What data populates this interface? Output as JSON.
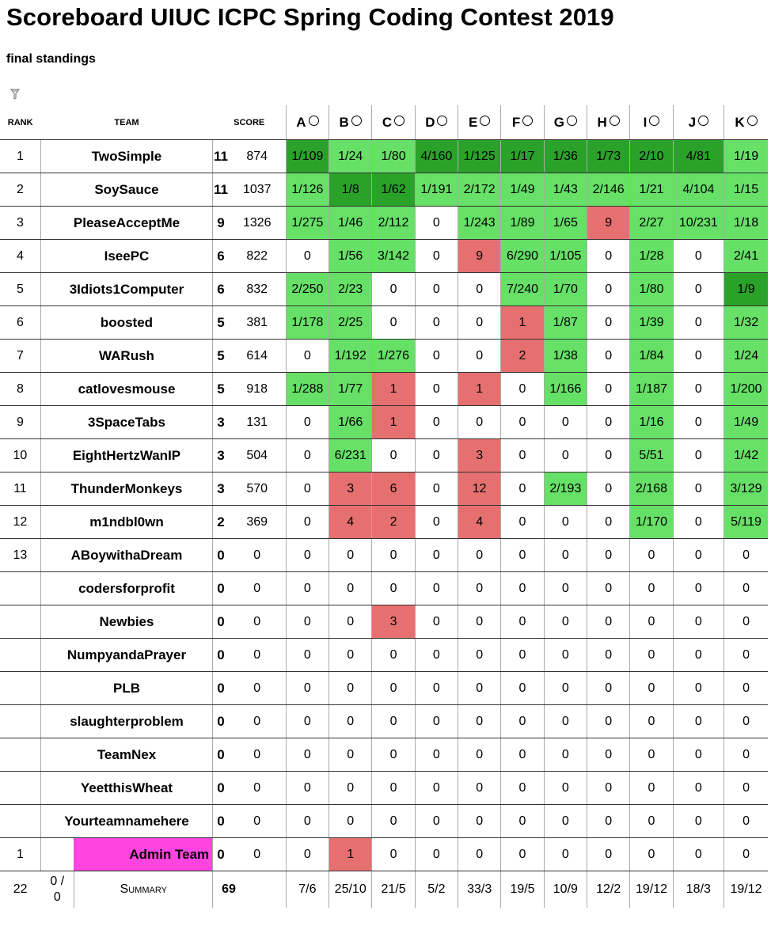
{
  "header": {
    "title": "Scoreboard UIUC ICPC Spring Coding Contest 2019",
    "subtitle": "final standings"
  },
  "filter_icon": "filter-icon",
  "columns": {
    "rank": "RANK",
    "team": "TEAM",
    "score": "SCORE",
    "problems": [
      "A",
      "B",
      "C",
      "D",
      "E",
      "F",
      "G",
      "H",
      "I",
      "J",
      "K"
    ]
  },
  "rows": [
    {
      "rank": "1",
      "team": "TwoSimple",
      "solved": "11",
      "penalty": "874",
      "cells": [
        [
          "1/109",
          "dg"
        ],
        [
          "1/24",
          "lg"
        ],
        [
          "1/80",
          "lg"
        ],
        [
          "4/160",
          "dg"
        ],
        [
          "1/125",
          "dg"
        ],
        [
          "1/17",
          "dg"
        ],
        [
          "1/36",
          "dg"
        ],
        [
          "1/73",
          "dg"
        ],
        [
          "2/10",
          "dg"
        ],
        [
          "4/81",
          "dg"
        ],
        [
          "1/19",
          "lg"
        ]
      ]
    },
    {
      "rank": "2",
      "team": "SoySauce",
      "solved": "11",
      "penalty": "1037",
      "cells": [
        [
          "1/126",
          "lg"
        ],
        [
          "1/8",
          "dg"
        ],
        [
          "1/62",
          "dg"
        ],
        [
          "1/191",
          "lg"
        ],
        [
          "2/172",
          "lg"
        ],
        [
          "1/49",
          "lg"
        ],
        [
          "1/43",
          "lg"
        ],
        [
          "2/146",
          "lg"
        ],
        [
          "1/21",
          "lg"
        ],
        [
          "4/104",
          "lg"
        ],
        [
          "1/15",
          "lg"
        ]
      ]
    },
    {
      "rank": "3",
      "team": "PleaseAcceptMe",
      "solved": "9",
      "penalty": "1326",
      "cells": [
        [
          "1/275",
          "lg"
        ],
        [
          "1/46",
          "lg"
        ],
        [
          "2/112",
          "lg"
        ],
        [
          "0",
          ""
        ],
        [
          "1/243",
          "lg"
        ],
        [
          "1/89",
          "lg"
        ],
        [
          "1/65",
          "lg"
        ],
        [
          "9",
          "rd"
        ],
        [
          "2/27",
          "lg"
        ],
        [
          "10/231",
          "lg"
        ],
        [
          "1/18",
          "lg"
        ]
      ]
    },
    {
      "rank": "4",
      "team": "IseePC",
      "solved": "6",
      "penalty": "822",
      "cells": [
        [
          "0",
          ""
        ],
        [
          "1/56",
          "lg"
        ],
        [
          "3/142",
          "lg"
        ],
        [
          "0",
          ""
        ],
        [
          "9",
          "rd"
        ],
        [
          "6/290",
          "lg"
        ],
        [
          "1/105",
          "lg"
        ],
        [
          "0",
          ""
        ],
        [
          "1/28",
          "lg"
        ],
        [
          "0",
          ""
        ],
        [
          "2/41",
          "lg"
        ]
      ]
    },
    {
      "rank": "5",
      "team": "3Idiots1Computer",
      "solved": "6",
      "penalty": "832",
      "cells": [
        [
          "2/250",
          "lg"
        ],
        [
          "2/23",
          "lg"
        ],
        [
          "0",
          ""
        ],
        [
          "0",
          ""
        ],
        [
          "0",
          ""
        ],
        [
          "7/240",
          "lg"
        ],
        [
          "1/70",
          "lg"
        ],
        [
          "0",
          ""
        ],
        [
          "1/80",
          "lg"
        ],
        [
          "0",
          ""
        ],
        [
          "1/9",
          "dg"
        ]
      ]
    },
    {
      "rank": "6",
      "team": "boosted",
      "solved": "5",
      "penalty": "381",
      "cells": [
        [
          "1/178",
          "lg"
        ],
        [
          "2/25",
          "lg"
        ],
        [
          "0",
          ""
        ],
        [
          "0",
          ""
        ],
        [
          "0",
          ""
        ],
        [
          "1",
          "rd"
        ],
        [
          "1/87",
          "lg"
        ],
        [
          "0",
          ""
        ],
        [
          "1/39",
          "lg"
        ],
        [
          "0",
          ""
        ],
        [
          "1/32",
          "lg"
        ]
      ]
    },
    {
      "rank": "7",
      "team": "WARush",
      "solved": "5",
      "penalty": "614",
      "cells": [
        [
          "0",
          ""
        ],
        [
          "1/192",
          "lg"
        ],
        [
          "1/276",
          "lg"
        ],
        [
          "0",
          ""
        ],
        [
          "0",
          ""
        ],
        [
          "2",
          "rd"
        ],
        [
          "1/38",
          "lg"
        ],
        [
          "0",
          ""
        ],
        [
          "1/84",
          "lg"
        ],
        [
          "0",
          ""
        ],
        [
          "1/24",
          "lg"
        ]
      ]
    },
    {
      "rank": "8",
      "team": "catlovesmouse",
      "solved": "5",
      "penalty": "918",
      "cells": [
        [
          "1/288",
          "lg"
        ],
        [
          "1/77",
          "lg"
        ],
        [
          "1",
          "rd"
        ],
        [
          "0",
          ""
        ],
        [
          "1",
          "rd"
        ],
        [
          "0",
          ""
        ],
        [
          "1/166",
          "lg"
        ],
        [
          "0",
          ""
        ],
        [
          "1/187",
          "lg"
        ],
        [
          "0",
          ""
        ],
        [
          "1/200",
          "lg"
        ]
      ]
    },
    {
      "rank": "9",
      "team": "3SpaceTabs",
      "solved": "3",
      "penalty": "131",
      "cells": [
        [
          "0",
          ""
        ],
        [
          "1/66",
          "lg"
        ],
        [
          "1",
          "rd"
        ],
        [
          "0",
          ""
        ],
        [
          "0",
          ""
        ],
        [
          "0",
          ""
        ],
        [
          "0",
          ""
        ],
        [
          "0",
          ""
        ],
        [
          "1/16",
          "lg"
        ],
        [
          "0",
          ""
        ],
        [
          "1/49",
          "lg"
        ]
      ]
    },
    {
      "rank": "10",
      "team": "EightHertzWanIP",
      "solved": "3",
      "penalty": "504",
      "cells": [
        [
          "0",
          ""
        ],
        [
          "6/231",
          "lg"
        ],
        [
          "0",
          ""
        ],
        [
          "0",
          ""
        ],
        [
          "3",
          "rd"
        ],
        [
          "0",
          ""
        ],
        [
          "0",
          ""
        ],
        [
          "0",
          ""
        ],
        [
          "5/51",
          "lg"
        ],
        [
          "0",
          ""
        ],
        [
          "1/42",
          "lg"
        ]
      ]
    },
    {
      "rank": "11",
      "team": "ThunderMonkeys",
      "solved": "3",
      "penalty": "570",
      "cells": [
        [
          "0",
          ""
        ],
        [
          "3",
          "rd"
        ],
        [
          "6",
          "rd"
        ],
        [
          "0",
          ""
        ],
        [
          "12",
          "rd"
        ],
        [
          "0",
          ""
        ],
        [
          "2/193",
          "lg"
        ],
        [
          "0",
          ""
        ],
        [
          "2/168",
          "lg"
        ],
        [
          "0",
          ""
        ],
        [
          "3/129",
          "lg"
        ]
      ]
    },
    {
      "rank": "12",
      "team": "m1ndbl0wn",
      "solved": "2",
      "penalty": "369",
      "cells": [
        [
          "0",
          ""
        ],
        [
          "4",
          "rd"
        ],
        [
          "2",
          "rd"
        ],
        [
          "0",
          ""
        ],
        [
          "4",
          "rd"
        ],
        [
          "0",
          ""
        ],
        [
          "0",
          ""
        ],
        [
          "0",
          ""
        ],
        [
          "1/170",
          "lg"
        ],
        [
          "0",
          ""
        ],
        [
          "5/119",
          "lg"
        ]
      ]
    },
    {
      "rank": "13",
      "team": "ABoywithaDream",
      "solved": "0",
      "penalty": "0",
      "cells": [
        [
          "0",
          ""
        ],
        [
          "0",
          ""
        ],
        [
          "0",
          ""
        ],
        [
          "0",
          ""
        ],
        [
          "0",
          ""
        ],
        [
          "0",
          ""
        ],
        [
          "0",
          ""
        ],
        [
          "0",
          ""
        ],
        [
          "0",
          ""
        ],
        [
          "0",
          ""
        ],
        [
          "0",
          ""
        ]
      ]
    },
    {
      "rank": "",
      "team": "codersforprofit",
      "solved": "0",
      "penalty": "0",
      "cells": [
        [
          "0",
          ""
        ],
        [
          "0",
          ""
        ],
        [
          "0",
          ""
        ],
        [
          "0",
          ""
        ],
        [
          "0",
          ""
        ],
        [
          "0",
          ""
        ],
        [
          "0",
          ""
        ],
        [
          "0",
          ""
        ],
        [
          "0",
          ""
        ],
        [
          "0",
          ""
        ],
        [
          "0",
          ""
        ]
      ]
    },
    {
      "rank": "",
      "team": "Newbies",
      "solved": "0",
      "penalty": "0",
      "cells": [
        [
          "0",
          ""
        ],
        [
          "0",
          ""
        ],
        [
          "3",
          "rd"
        ],
        [
          "0",
          ""
        ],
        [
          "0",
          ""
        ],
        [
          "0",
          ""
        ],
        [
          "0",
          ""
        ],
        [
          "0",
          ""
        ],
        [
          "0",
          ""
        ],
        [
          "0",
          ""
        ],
        [
          "0",
          ""
        ]
      ]
    },
    {
      "rank": "",
      "team": "NumpyandaPrayer",
      "solved": "0",
      "penalty": "0",
      "cells": [
        [
          "0",
          ""
        ],
        [
          "0",
          ""
        ],
        [
          "0",
          ""
        ],
        [
          "0",
          ""
        ],
        [
          "0",
          ""
        ],
        [
          "0",
          ""
        ],
        [
          "0",
          ""
        ],
        [
          "0",
          ""
        ],
        [
          "0",
          ""
        ],
        [
          "0",
          ""
        ],
        [
          "0",
          ""
        ]
      ]
    },
    {
      "rank": "",
      "team": "PLB",
      "solved": "0",
      "penalty": "0",
      "cells": [
        [
          "0",
          ""
        ],
        [
          "0",
          ""
        ],
        [
          "0",
          ""
        ],
        [
          "0",
          ""
        ],
        [
          "0",
          ""
        ],
        [
          "0",
          ""
        ],
        [
          "0",
          ""
        ],
        [
          "0",
          ""
        ],
        [
          "0",
          ""
        ],
        [
          "0",
          ""
        ],
        [
          "0",
          ""
        ]
      ]
    },
    {
      "rank": "",
      "team": "slaughterproblem",
      "solved": "0",
      "penalty": "0",
      "cells": [
        [
          "0",
          ""
        ],
        [
          "0",
          ""
        ],
        [
          "0",
          ""
        ],
        [
          "0",
          ""
        ],
        [
          "0",
          ""
        ],
        [
          "0",
          ""
        ],
        [
          "0",
          ""
        ],
        [
          "0",
          ""
        ],
        [
          "0",
          ""
        ],
        [
          "0",
          ""
        ],
        [
          "0",
          ""
        ]
      ]
    },
    {
      "rank": "",
      "team": "TeamNex",
      "solved": "0",
      "penalty": "0",
      "cells": [
        [
          "0",
          ""
        ],
        [
          "0",
          ""
        ],
        [
          "0",
          ""
        ],
        [
          "0",
          ""
        ],
        [
          "0",
          ""
        ],
        [
          "0",
          ""
        ],
        [
          "0",
          ""
        ],
        [
          "0",
          ""
        ],
        [
          "0",
          ""
        ],
        [
          "0",
          ""
        ],
        [
          "0",
          ""
        ]
      ]
    },
    {
      "rank": "",
      "team": "YeetthisWheat",
      "solved": "0",
      "penalty": "0",
      "cells": [
        [
          "0",
          ""
        ],
        [
          "0",
          ""
        ],
        [
          "0",
          ""
        ],
        [
          "0",
          ""
        ],
        [
          "0",
          ""
        ],
        [
          "0",
          ""
        ],
        [
          "0",
          ""
        ],
        [
          "0",
          ""
        ],
        [
          "0",
          ""
        ],
        [
          "0",
          ""
        ],
        [
          "0",
          ""
        ]
      ]
    },
    {
      "rank": "",
      "team": "Yourteamnamehere",
      "solved": "0",
      "penalty": "0",
      "cells": [
        [
          "0",
          ""
        ],
        [
          "0",
          ""
        ],
        [
          "0",
          ""
        ],
        [
          "0",
          ""
        ],
        [
          "0",
          ""
        ],
        [
          "0",
          ""
        ],
        [
          "0",
          ""
        ],
        [
          "0",
          ""
        ],
        [
          "0",
          ""
        ],
        [
          "0",
          ""
        ],
        [
          "0",
          ""
        ]
      ]
    },
    {
      "rank": "1",
      "team": "Admin Team",
      "solved": "0",
      "penalty": "0",
      "admin": true,
      "cells": [
        [
          "0",
          ""
        ],
        [
          "1",
          "rd"
        ],
        [
          "0",
          ""
        ],
        [
          "0",
          ""
        ],
        [
          "0",
          ""
        ],
        [
          "0",
          ""
        ],
        [
          "0",
          ""
        ],
        [
          "0",
          ""
        ],
        [
          "0",
          ""
        ],
        [
          "0",
          ""
        ],
        [
          "0",
          ""
        ]
      ]
    }
  ],
  "summary": {
    "teams": "22",
    "affil_top": "0 /",
    "affil_bottom": "0",
    "label": "Summary",
    "total_solved": "69",
    "per_problem": [
      "7/6",
      "25/10",
      "21/5",
      "5/2",
      "33/3",
      "19/5",
      "10/9",
      "12/2",
      "19/12",
      "18/3",
      "19/12"
    ]
  },
  "colors": {
    "solved": "#66e066",
    "first_solve": "#2aa22a",
    "attempted": "#e67070",
    "admin_highlight": "#ff44e0"
  }
}
